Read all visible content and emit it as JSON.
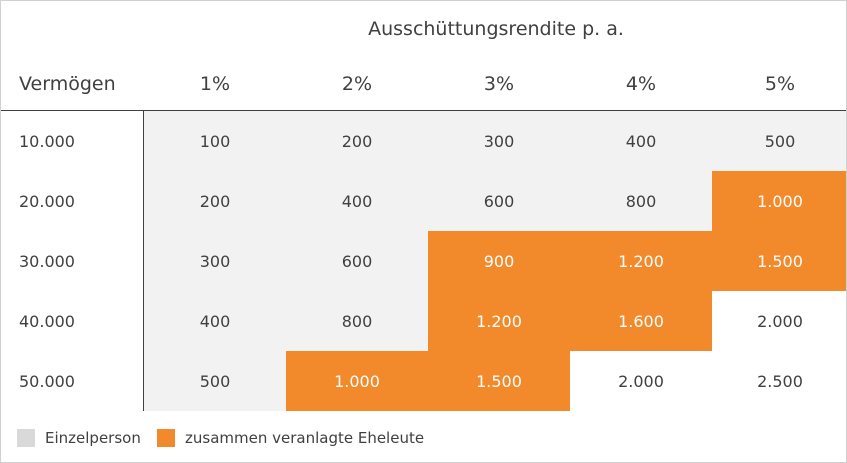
{
  "table": {
    "caption": "Ausschüttungsrendite p. a.",
    "header": [
      "Vermögen",
      "1%",
      "2%",
      "3%",
      "4%",
      "5%"
    ],
    "rows": [
      [
        "10.000",
        "100",
        "200",
        "300",
        "400",
        "500"
      ],
      [
        "20.000",
        "200",
        "400",
        "600",
        "800",
        "1.000"
      ],
      [
        "30.000",
        "300",
        "600",
        "900",
        "1.200",
        "1.500"
      ],
      [
        "40.000",
        "400",
        "800",
        "1.200",
        "1.600",
        "2.000"
      ],
      [
        "50.000",
        "500",
        "1.000",
        "1.500",
        "2.000",
        "2.500"
      ]
    ],
    "fills": [
      [
        "#f2f2f2",
        "#f2f2f2",
        "#f2f2f2",
        "#f2f2f2",
        "#f2f2f2"
      ],
      [
        "#f2f2f2",
        "#f2f2f2",
        "#f2f2f2",
        "#f2f2f2",
        "#f28a2c"
      ],
      [
        "#f2f2f2",
        "#f2f2f2",
        "#f28a2c",
        "#f28a2c",
        "#f28a2c"
      ],
      [
        "#f2f2f2",
        "#f2f2f2",
        "#f28a2c",
        "#f28a2c",
        "#ffffff"
      ],
      [
        "#f2f2f2",
        "#f28a2c",
        "#f28a2c",
        "#ffffff",
        "#ffffff"
      ]
    ]
  },
  "legend": [
    {
      "label": "Einzelperson",
      "color": "#d9d9d9"
    },
    {
      "label": "zusammen veranlagte Eheleute",
      "color": "#f28a2c"
    }
  ]
}
